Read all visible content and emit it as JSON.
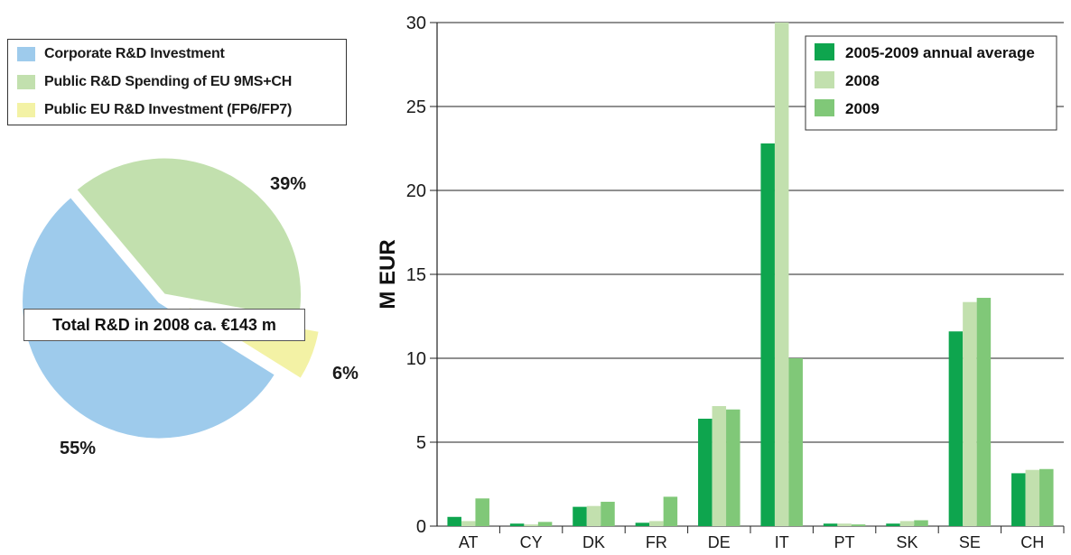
{
  "pie_legend": [
    {
      "label": "Corporate R&D Investment",
      "color": "#9ecbec"
    },
    {
      "label": "Public R&D Spending of EU 9MS+CH",
      "color": "#c2e0ae"
    },
    {
      "label": "Public EU R&D Investment (FP6/FP7)",
      "color": "#f3f2a5"
    }
  ],
  "total_label": "Total R&D in 2008 ca. €143 m",
  "pie_percent_labels": {
    "corporate": "55%",
    "public": "39%",
    "eu": "6%"
  },
  "chart_data": [
    {
      "type": "pie",
      "slices": [
        {
          "label": "Corporate R&D Investment",
          "value": 55,
          "color": "#9ecbec"
        },
        {
          "label": "Public R&D Spending of EU 9MS+CH",
          "value": 39,
          "color": "#c2e0ae"
        },
        {
          "label": "Public EU R&D Investment (FP6/FP7)",
          "value": 6,
          "color": "#f3f2a5"
        }
      ],
      "annotation": "Total R&D in 2008 ca. €143 m"
    },
    {
      "type": "bar",
      "categories": [
        "AT",
        "CY",
        "DK",
        "FR",
        "DE",
        "IT",
        "PT",
        "SK",
        "SE",
        "CH"
      ],
      "series": [
        {
          "name": "2005-2009 annual average",
          "color": "#0ea54e",
          "values": [
            0.55,
            0.15,
            1.15,
            0.2,
            6.4,
            22.8,
            0.15,
            0.15,
            11.6,
            3.15
          ]
        },
        {
          "name": "2008",
          "color": "#c2e0ae",
          "values": [
            0.3,
            0.1,
            1.2,
            0.3,
            7.15,
            30.0,
            0.15,
            0.3,
            13.35,
            3.35
          ]
        },
        {
          "name": "2009",
          "color": "#80c878",
          "values": [
            1.65,
            0.25,
            1.45,
            1.75,
            6.95,
            10.0,
            0.1,
            0.35,
            13.6,
            3.4
          ]
        }
      ],
      "ylabel": "M EUR",
      "ylim": [
        0,
        30
      ],
      "yticks": [
        0,
        5,
        10,
        15,
        20,
        25,
        30
      ],
      "grid": true,
      "legend_position": "top-right"
    }
  ]
}
